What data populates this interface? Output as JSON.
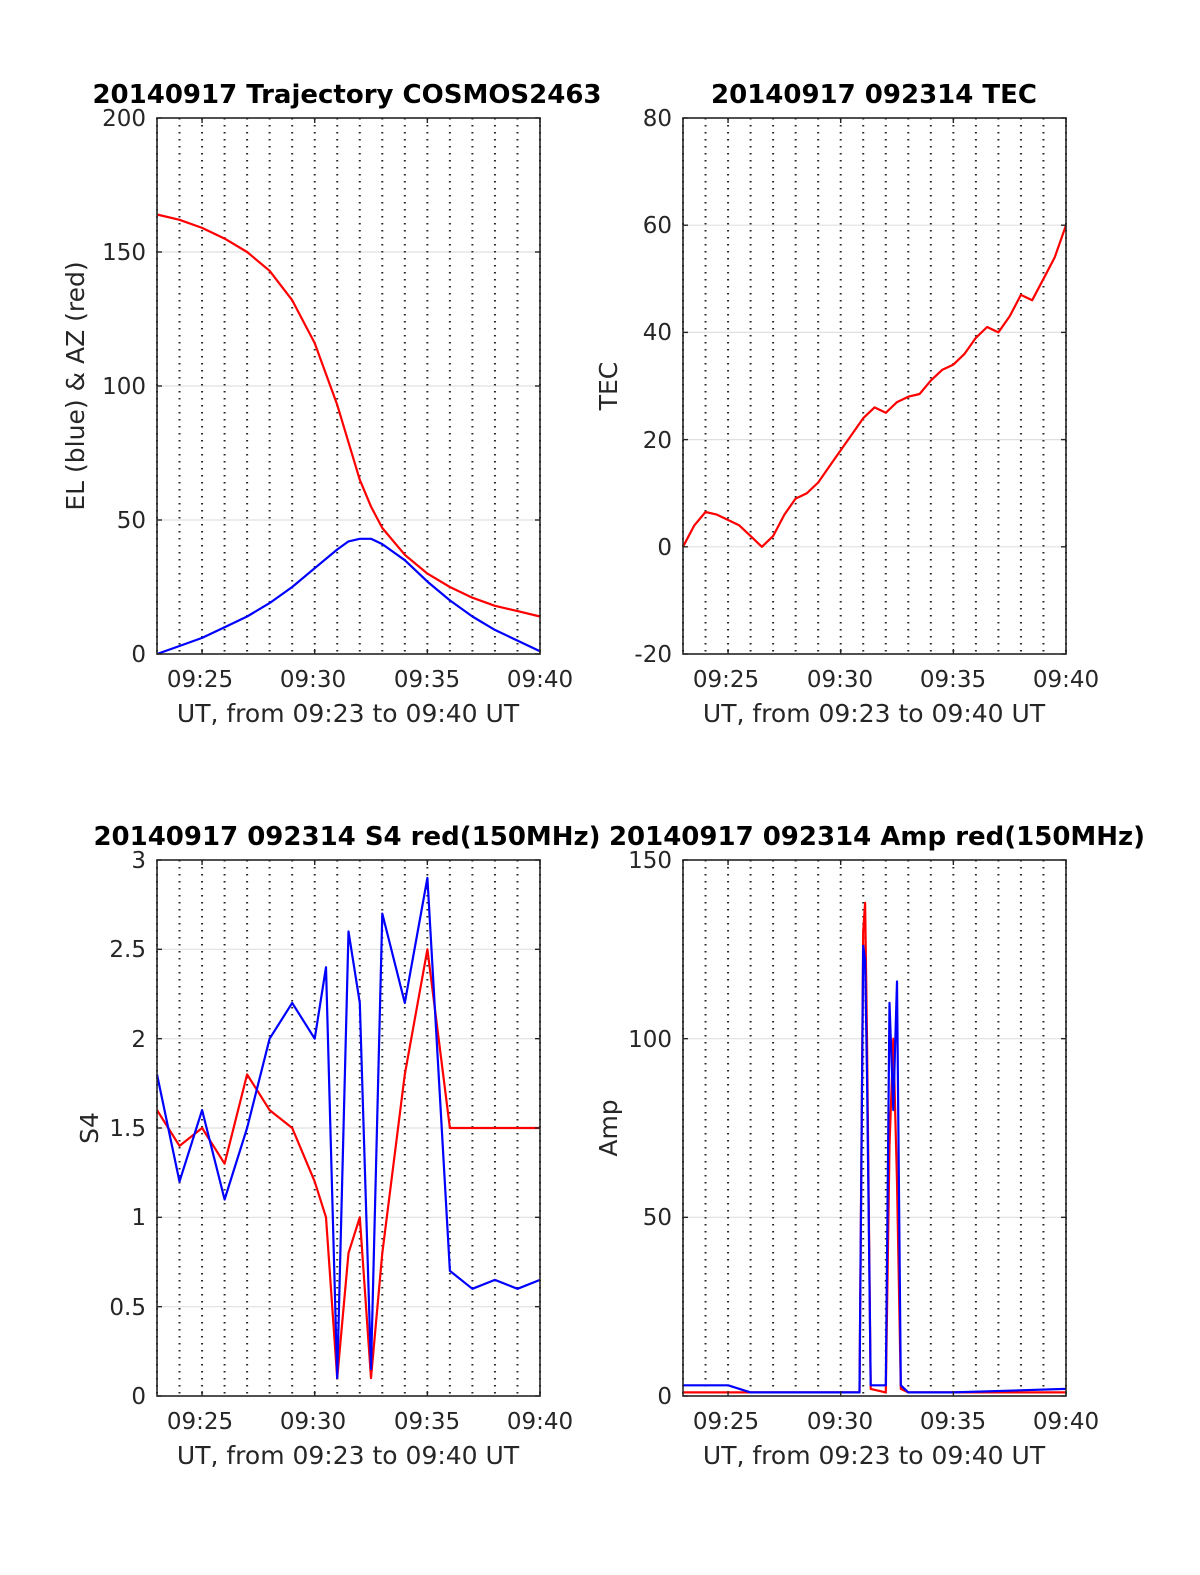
{
  "figure": {
    "colors": {
      "red": "#ff0000",
      "blue": "#0000ff",
      "axes": "#262626",
      "grid": "#e0e0e0"
    }
  },
  "chart_data": [
    {
      "type": "line",
      "title": "20140917 Trajectory COSMOS2463",
      "xlabel": "UT, from 09:23 to 09:40 UT",
      "ylabel": "EL (blue) & AZ (red)",
      "xlim": [
        "09:23",
        "09:40"
      ],
      "ylim": [
        0,
        200
      ],
      "xticks": [
        "09:25",
        "09:30",
        "09:35",
        "09:40"
      ],
      "yticks": [
        "0",
        "50",
        "100",
        "150",
        "200"
      ],
      "grid": "horizontal solid, vertical dotted every minute",
      "series": [
        {
          "color": "#ff0000",
          "x": [
            "09:23",
            "09:24",
            "09:25",
            "09:26",
            "09:27",
            "09:28",
            "09:29",
            "09:30",
            "09:31",
            "09:31:30",
            "09:32",
            "09:32:30",
            "09:33",
            "09:34",
            "09:35",
            "09:36",
            "09:37",
            "09:38",
            "09:39",
            "09:40"
          ],
          "values": [
            164,
            162,
            159,
            155,
            150,
            143,
            132,
            116,
            93,
            79,
            65,
            55,
            47,
            37,
            30,
            25,
            21,
            18,
            16,
            14
          ]
        },
        {
          "color": "#0000ff",
          "x": [
            "09:23",
            "09:24",
            "09:25",
            "09:26",
            "09:27",
            "09:28",
            "09:29",
            "09:30",
            "09:31",
            "09:31:30",
            "09:32",
            "09:32:30",
            "09:33",
            "09:34",
            "09:35",
            "09:36",
            "09:37",
            "09:38",
            "09:39",
            "09:40"
          ],
          "values": [
            0,
            3,
            6,
            10,
            14,
            19,
            25,
            32,
            39,
            42,
            43,
            43,
            41,
            35,
            27,
            20,
            14,
            9,
            5,
            1
          ]
        }
      ]
    },
    {
      "type": "line",
      "title": "20140917 092314 TEC",
      "xlabel": "UT, from 09:23 to 09:40 UT",
      "ylabel": "TEC",
      "xlim": [
        "09:23",
        "09:40"
      ],
      "ylim": [
        -20,
        80
      ],
      "xticks": [
        "09:25",
        "09:30",
        "09:35",
        "09:40"
      ],
      "yticks": [
        "-20",
        "0",
        "20",
        "40",
        "60",
        "80"
      ],
      "grid": "horizontal solid, vertical dotted every minute",
      "series": [
        {
          "color": "#ff0000",
          "x": [
            "09:23",
            "09:23:30",
            "09:24",
            "09:24:30",
            "09:25",
            "09:25:30",
            "09:26",
            "09:26:30",
            "09:27",
            "09:27:30",
            "09:28",
            "09:28:30",
            "09:29",
            "09:29:30",
            "09:30",
            "09:30:30",
            "09:31",
            "09:31:30",
            "09:32",
            "09:32:30",
            "09:33",
            "09:33:30",
            "09:34",
            "09:34:30",
            "09:35",
            "09:35:30",
            "09:36",
            "09:36:30",
            "09:37",
            "09:37:30",
            "09:38",
            "09:38:30",
            "09:39",
            "09:39:30",
            "09:40"
          ],
          "values": [
            0,
            4,
            6.5,
            6,
            5,
            4,
            2,
            0,
            2,
            6,
            9,
            10,
            12,
            15,
            18,
            21,
            24,
            26,
            25,
            27,
            28,
            28.5,
            31,
            33,
            34,
            36,
            39,
            41,
            40,
            43,
            47,
            46,
            50,
            54,
            60
          ]
        }
      ]
    },
    {
      "type": "line",
      "title": "20140917 092314 S4 red(150MHz)",
      "xlabel": "UT, from 09:23 to 09:40 UT",
      "ylabel": "S4",
      "xlim": [
        "09:23",
        "09:40"
      ],
      "ylim": [
        0,
        3
      ],
      "xticks": [
        "09:25",
        "09:30",
        "09:35",
        "09:40"
      ],
      "yticks": [
        "0",
        "0.5",
        "1",
        "1.5",
        "2",
        "2.5",
        "3"
      ],
      "grid": "horizontal solid, vertical dotted every minute",
      "series": [
        {
          "color": "#ff0000",
          "x": [
            "09:23",
            "09:24",
            "09:25",
            "09:26",
            "09:27",
            "09:28",
            "09:29",
            "09:30",
            "09:30:30",
            "09:31",
            "09:31:30",
            "09:32",
            "09:32:30",
            "09:33",
            "09:34",
            "09:35",
            "09:36",
            "09:37",
            "09:38",
            "09:39",
            "09:40"
          ],
          "values": [
            1.6,
            1.4,
            1.5,
            1.3,
            1.8,
            1.6,
            1.5,
            1.2,
            1.0,
            0.1,
            0.8,
            1.0,
            0.1,
            0.8,
            1.8,
            2.5,
            1.5,
            1.5,
            1.5,
            1.5,
            1.5
          ]
        },
        {
          "color": "#0000ff",
          "x": [
            "09:23",
            "09:24",
            "09:25",
            "09:26",
            "09:27",
            "09:28",
            "09:29",
            "09:30",
            "09:30:30",
            "09:31",
            "09:31:30",
            "09:32",
            "09:32:30",
            "09:33",
            "09:34",
            "09:35",
            "09:36",
            "09:37",
            "09:38",
            "09:39",
            "09:40"
          ],
          "values": [
            1.8,
            1.2,
            1.6,
            1.1,
            1.5,
            2.0,
            2.2,
            2.0,
            2.4,
            0.1,
            2.6,
            2.2,
            0.15,
            2.7,
            2.2,
            2.9,
            0.7,
            0.6,
            0.65,
            0.6,
            0.65
          ]
        }
      ]
    },
    {
      "type": "line",
      "title": "20140917 092314 Amp red(150MHz)",
      "xlabel": "UT, from 09:23 to 09:40 UT",
      "ylabel": "Amp",
      "xlim": [
        "09:23",
        "09:40"
      ],
      "ylim": [
        0,
        150
      ],
      "xticks": [
        "09:25",
        "09:30",
        "09:35",
        "09:40"
      ],
      "yticks": [
        "0",
        "50",
        "100",
        "150"
      ],
      "grid": "horizontal solid, vertical dotted every minute",
      "series": [
        {
          "color": "#ff0000",
          "x": [
            "09:23",
            "09:30:50",
            "09:31:00",
            "09:31:05",
            "09:31:10",
            "09:31:20",
            "09:32:00",
            "09:32:10",
            "09:32:20",
            "09:32:30",
            "09:32:40",
            "09:33",
            "09:40"
          ],
          "values": [
            1,
            1,
            130,
            138,
            100,
            2,
            1,
            70,
            100,
            60,
            2,
            1,
            1
          ]
        },
        {
          "color": "#0000ff",
          "x": [
            "09:23",
            "09:25",
            "09:26",
            "09:30:50",
            "09:31:00",
            "09:31:05",
            "09:31:10",
            "09:31:20",
            "09:32:00",
            "09:32:10",
            "09:32:20",
            "09:32:30",
            "09:32:40",
            "09:33",
            "09:35",
            "09:40"
          ],
          "values": [
            3,
            3,
            1,
            1,
            126,
            122,
            90,
            3,
            3,
            110,
            80,
            116,
            3,
            1,
            1,
            2
          ]
        }
      ]
    }
  ]
}
